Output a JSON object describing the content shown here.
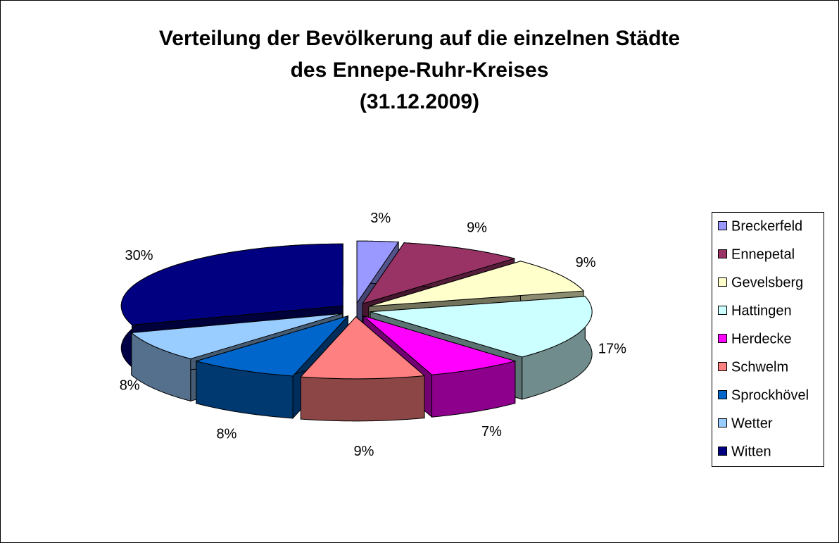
{
  "chart_data": {
    "type": "pie",
    "title": [
      "Verteilung der Bevölkerung auf die einzelnen Städte",
      "des Ennepe-Ruhr-Kreises",
      "(31.12.2009)"
    ],
    "categories": [
      "Breckerfeld",
      "Ennepetal",
      "Gevelsberg",
      "Hattingen",
      "Herdecke",
      "Schwelm",
      "Sprockhövel",
      "Wetter",
      "Witten"
    ],
    "values": [
      3,
      9,
      9,
      17,
      7,
      9,
      8,
      8,
      30
    ],
    "value_labels": [
      "3%",
      "9%",
      "9%",
      "17%",
      "7%",
      "9%",
      "8%",
      "8%",
      "30%"
    ],
    "colors": [
      "#9999FF",
      "#993366",
      "#FFFFCC",
      "#CCFFFF",
      "#FF00FF",
      "#FF8080",
      "#0066CC",
      "#99CCFF",
      "#000080"
    ],
    "legend": "right"
  }
}
